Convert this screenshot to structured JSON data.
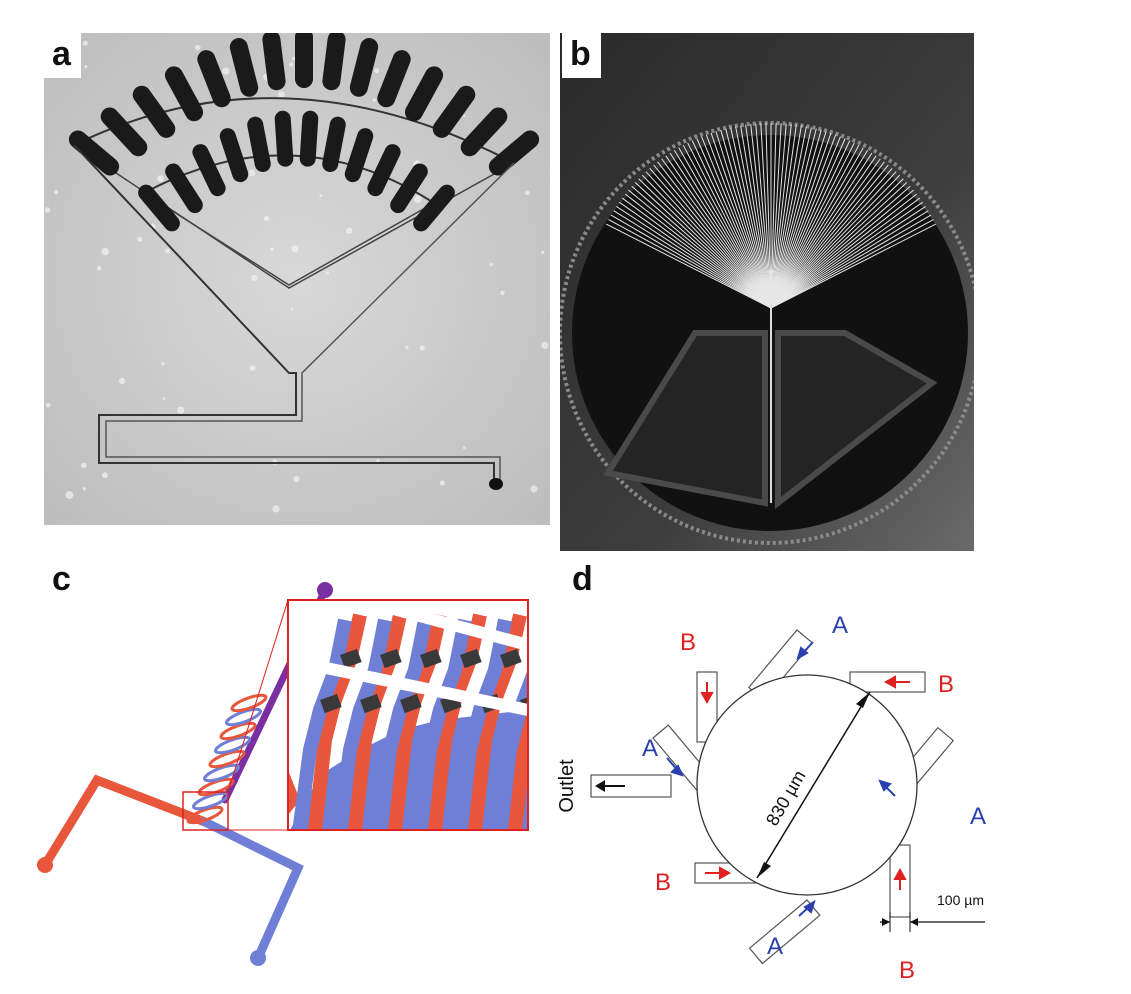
{
  "panels": {
    "a": {
      "label": "a"
    },
    "b": {
      "label": "b"
    },
    "c": {
      "label": "c"
    },
    "d": {
      "label": "d",
      "inlet_a": "A",
      "inlet_b": "B",
      "outlet": "Outlet",
      "diameter": "830 µm",
      "width_scale": "100 µm"
    }
  },
  "colors": {
    "red": "#e8563b",
    "blue": "#6f7fd6",
    "purple": "#7a2fa0",
    "label_red": "#e02020",
    "label_blue": "#2a3fb0"
  }
}
